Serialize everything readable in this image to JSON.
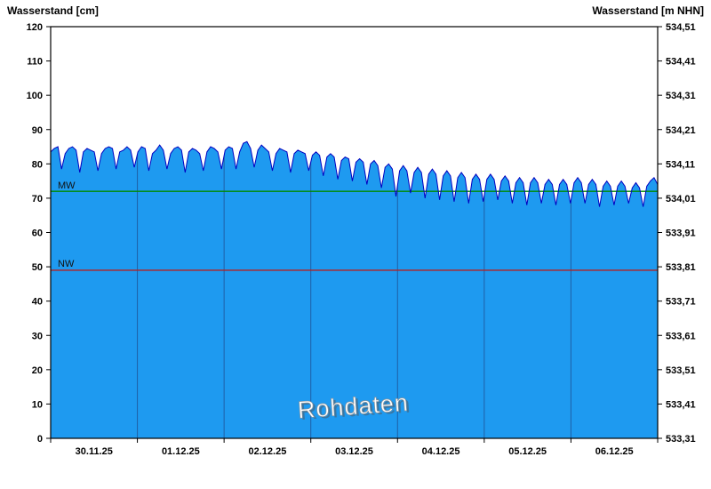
{
  "chart_data": {
    "type": "area",
    "title": "",
    "watermark": "Rohdaten",
    "left_axis": {
      "title": "Wasserstand [cm]",
      "min": 0,
      "max": 120,
      "tick_step": 10,
      "tick_labels": [
        "0",
        "10",
        "20",
        "30",
        "40",
        "50",
        "60",
        "70",
        "80",
        "90",
        "100",
        "110",
        "120"
      ]
    },
    "right_axis": {
      "title": "Wasserstand [m NHN]",
      "min": 533.31,
      "max": 534.51,
      "tick_step": 0.1,
      "tick_labels_top_to_bottom": [
        "534,51",
        "534,41",
        "534,31",
        "534,21",
        "534,11",
        "534,01",
        "533,91",
        "533,81",
        "533,71",
        "533,61",
        "533,51",
        "533,41",
        "533,31"
      ]
    },
    "x_axis": {
      "day_labels": [
        "30.11.25",
        "01.12.25",
        "02.12.25",
        "03.12.25",
        "04.12.25",
        "05.12.25",
        "06.12.25"
      ],
      "hours_per_day": 24
    },
    "reference_lines": [
      {
        "label": "MW",
        "value_cm": 72,
        "color": "#008A00"
      },
      {
        "label": "NW",
        "value_cm": 49,
        "color": "#B22222"
      }
    ],
    "series": [
      {
        "name": "Wasserstand",
        "unit": "cm",
        "interval_hours": 1,
        "values": [
          83.5,
          84.5,
          85,
          78.5,
          83,
          84.5,
          85,
          84,
          77.5,
          83.5,
          84.5,
          84,
          83.5,
          78,
          83,
          84.5,
          85,
          84.5,
          78.5,
          83.5,
          84,
          85,
          84,
          79,
          83.5,
          85,
          84.5,
          78,
          83,
          84,
          85.5,
          84,
          78.5,
          83,
          84.5,
          85,
          84,
          77.5,
          83.5,
          84.5,
          84,
          83,
          78,
          83.5,
          85,
          84.5,
          83.5,
          78.5,
          84,
          85,
          84.5,
          78.5,
          83.5,
          86,
          86.5,
          84.5,
          79,
          84,
          85.5,
          84.5,
          83.5,
          78,
          83,
          84.5,
          84,
          83.5,
          77.5,
          83,
          84,
          83.5,
          83,
          78,
          82.5,
          83.5,
          82.5,
          76.5,
          82,
          83,
          82,
          75.5,
          81,
          82,
          81.5,
          75,
          80.5,
          81.5,
          80.5,
          74,
          80,
          81,
          79.5,
          73,
          79,
          80,
          78.5,
          70.5,
          78,
          79.5,
          78,
          71.5,
          77.5,
          79,
          77.5,
          70,
          77,
          78.5,
          77,
          69.5,
          76.5,
          78,
          76.5,
          69,
          76,
          77.5,
          76,
          68.5,
          75.5,
          77,
          75.5,
          69,
          75.5,
          77,
          75.5,
          69.5,
          75,
          76.5,
          75,
          68.5,
          74.5,
          76,
          74.5,
          68,
          74.5,
          76,
          74.5,
          68.5,
          74,
          75.5,
          74,
          68,
          74,
          75.5,
          74,
          68.5,
          74.5,
          76,
          74.5,
          68.5,
          74,
          75.5,
          74,
          67.5,
          73.5,
          75,
          73.5,
          68,
          73.5,
          75,
          73.5,
          68.5,
          73,
          74.5,
          73,
          67.5,
          73.5,
          75,
          76,
          74
        ]
      }
    ],
    "colors": {
      "fill": "#1E9AF0",
      "line": "#0000C0",
      "grid_in_fill": "#1F5FA6",
      "border": "#000000",
      "axis_text": "#000000"
    },
    "layout": {
      "grid": "vertical-day-lines-inside-fill",
      "legend": "none"
    }
  }
}
